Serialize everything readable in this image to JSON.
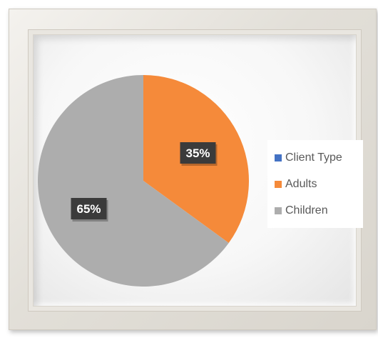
{
  "chart_data": {
    "type": "pie",
    "categories": [
      "Adults",
      "Children"
    ],
    "values": [
      35,
      65
    ],
    "data_labels": [
      "35%",
      "65%"
    ],
    "colors": [
      "#F58A3A",
      "#ADADAD"
    ],
    "legend": {
      "placement": "right",
      "entries": [
        {
          "label": "Client Type",
          "color": "#4472C4"
        },
        {
          "label": "Adults",
          "color": "#F58A3A"
        },
        {
          "label": "Children",
          "color": "#ADADAD"
        }
      ]
    },
    "start_angle_deg": 0,
    "direction": "clockwise"
  },
  "colors": {
    "data_label_background": "#3B3B3B",
    "data_label_text": "#FFFFFF",
    "legend_text": "#595959"
  }
}
